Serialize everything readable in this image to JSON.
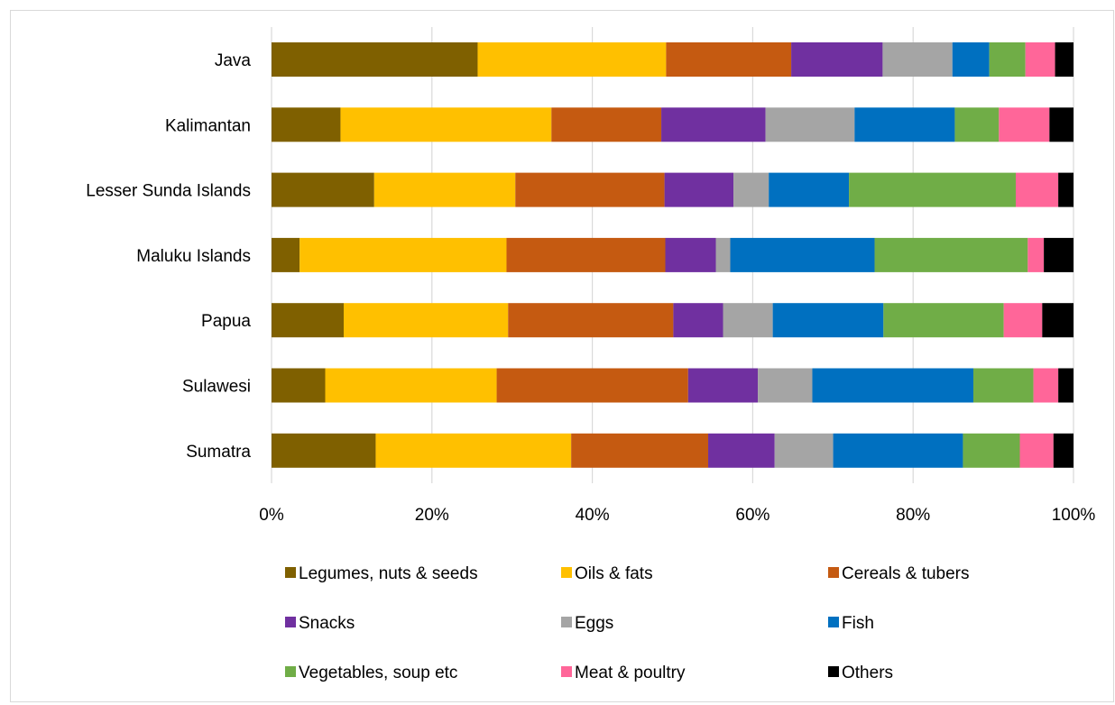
{
  "chart_data": {
    "type": "bar",
    "orientation": "horizontal",
    "stacked": "percent",
    "title": "",
    "xlabel": "",
    "ylabel": "",
    "xlim": [
      0,
      100
    ],
    "x_ticks": [
      "0%",
      "20%",
      "40%",
      "60%",
      "80%",
      "100%"
    ],
    "grid": true,
    "legend_position": "bottom",
    "categories": [
      "Java",
      "Kalimantan",
      "Lesser Sunda Islands",
      "Maluku Islands",
      "Papua",
      "Sulawesi",
      "Sumatra"
    ],
    "series": [
      {
        "name": "Legumes, nuts & seeds",
        "color": "#7f6000",
        "values": [
          25.7,
          8.6,
          12.8,
          3.5,
          9.0,
          6.7,
          13.0
        ]
      },
      {
        "name": "Oils & fats",
        "color": "#ffc000",
        "values": [
          23.5,
          26.3,
          17.6,
          25.8,
          20.5,
          21.4,
          24.4
        ]
      },
      {
        "name": "Cereals & tubers",
        "color": "#c55a11",
        "values": [
          15.6,
          13.7,
          18.6,
          19.8,
          20.6,
          23.9,
          17.1
        ]
      },
      {
        "name": "Snacks",
        "color": "#7030a0",
        "values": [
          11.4,
          13.0,
          8.6,
          6.3,
          6.2,
          8.7,
          8.3
        ]
      },
      {
        "name": "Eggs",
        "color": "#a5a5a5",
        "values": [
          8.7,
          11.1,
          4.4,
          1.8,
          6.2,
          6.8,
          7.3
        ]
      },
      {
        "name": "Fish",
        "color": "#0070c0",
        "values": [
          4.6,
          12.5,
          10.0,
          18.0,
          13.8,
          20.1,
          16.2
        ]
      },
      {
        "name": "Vegetables, soup etc",
        "color": "#70ad47",
        "values": [
          4.5,
          5.5,
          20.8,
          19.1,
          15.0,
          7.5,
          7.1
        ]
      },
      {
        "name": "Meat & poultry",
        "color": "#ff6699",
        "values": [
          3.7,
          6.3,
          5.3,
          2.0,
          4.8,
          3.1,
          4.2
        ]
      },
      {
        "name": "Others",
        "color": "#000000",
        "values": [
          2.3,
          3.0,
          1.9,
          3.7,
          3.9,
          1.9,
          2.5
        ]
      }
    ]
  }
}
